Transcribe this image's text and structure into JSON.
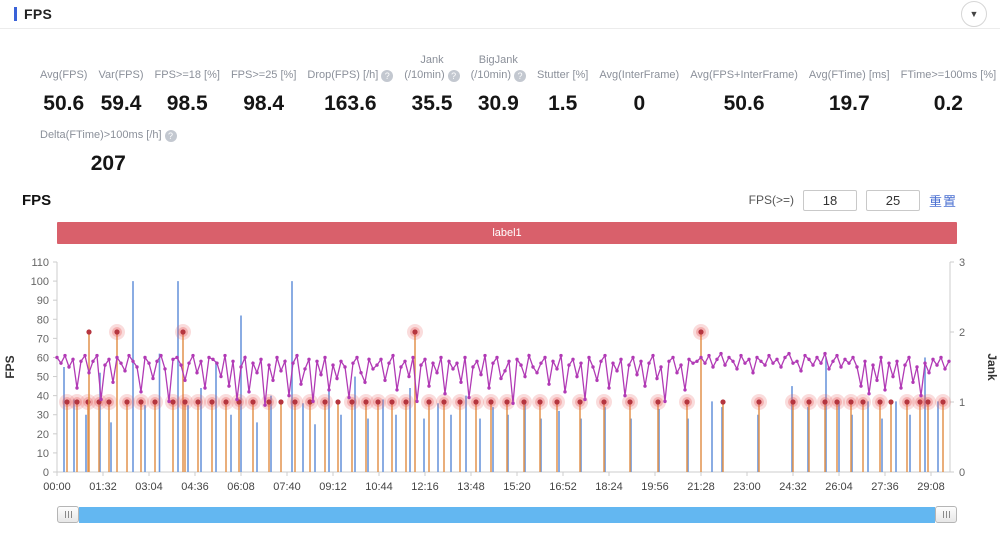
{
  "header": {
    "title": "FPS",
    "collapse_icon": "▼"
  },
  "stats": {
    "row1": [
      {
        "top": "",
        "label": "Avg(FPS)",
        "help": "",
        "value": "50.6"
      },
      {
        "top": "",
        "label": "Var(FPS)",
        "help": "",
        "value": "59.4"
      },
      {
        "top": "",
        "label": "FPS>=18 [%]",
        "help": "",
        "value": "98.5"
      },
      {
        "top": "",
        "label": "FPS>=25 [%]",
        "help": "",
        "value": "98.4"
      },
      {
        "top": "",
        "label": "Drop(FPS) [/h]",
        "help": "?",
        "value": "163.6"
      },
      {
        "top": "Jank",
        "label": "(/10min)",
        "help": "?",
        "value": "35.5"
      },
      {
        "top": "BigJank",
        "label": "(/10min)",
        "help": "?",
        "value": "30.9"
      },
      {
        "top": "",
        "label": "Stutter [%]",
        "help": "",
        "value": "1.5"
      },
      {
        "top": "",
        "label": "Avg(InterFrame)",
        "help": "",
        "value": "0"
      },
      {
        "top": "",
        "label": "Avg(FPS+InterFrame)",
        "help": "",
        "value": "50.6"
      },
      {
        "top": "",
        "label": "Avg(FTime) [ms]",
        "help": "",
        "value": "19.7"
      },
      {
        "top": "",
        "label": "FTime>=100ms [%]",
        "help": "",
        "value": "0.2"
      }
    ],
    "row2": [
      {
        "top": "",
        "label": "Delta(FTime)>100ms [/h]",
        "help": "?",
        "value": "207"
      }
    ]
  },
  "chart": {
    "section_title": "FPS",
    "controls": {
      "label": "FPS(>=)",
      "min_value": "18",
      "max_value": "25",
      "reset_label": "重置"
    },
    "banner": {
      "text": "label1",
      "color": "#d9606b"
    }
  },
  "chart_data": {
    "type": "line",
    "title": "FPS",
    "x_ticks": [
      "00:00",
      "01:32",
      "03:04",
      "04:36",
      "06:08",
      "07:40",
      "09:12",
      "10:44",
      "12:16",
      "13:48",
      "15:20",
      "16:52",
      "18:24",
      "19:56",
      "21:28",
      "23:00",
      "24:32",
      "26:04",
      "27:36",
      "29:08"
    ],
    "tick_interval_sec": 92,
    "time_max_sec": 1786,
    "left_axis": {
      "label": "FPS",
      "min": 0,
      "max": 110,
      "step": 10
    },
    "right_axis": {
      "label": "Jank",
      "min": 0,
      "max": 3,
      "step": 1
    },
    "legend": "none",
    "grid": "off",
    "colors": {
      "fps": "#b13ab5",
      "jank_stem": "#e2924d",
      "jank_dot": "#b5353f",
      "bigjank_halo": "#e86060",
      "drop_spike": "#6d98dc",
      "axis": "#cccccc",
      "tick_text": "#666666",
      "xtick_text": "#444444"
    },
    "fps_series": {
      "dt_sec": 8,
      "values": [
        60,
        57,
        61,
        55,
        59,
        44,
        58,
        61,
        52,
        58,
        61,
        38,
        56,
        59,
        47,
        60,
        57,
        53,
        61,
        58,
        55,
        42,
        60,
        57,
        49,
        58,
        61,
        54,
        37,
        59,
        60,
        56,
        48,
        57,
        61,
        52,
        58,
        44,
        60,
        59,
        57,
        50,
        61,
        45,
        58,
        38,
        55,
        60,
        42,
        57,
        52,
        59,
        35,
        56,
        48,
        60,
        53,
        58,
        40,
        57,
        61,
        46,
        54,
        59,
        37,
        58,
        51,
        60,
        43,
        56,
        49,
        58,
        55,
        39,
        57,
        60,
        52,
        47,
        59,
        54,
        56,
        59,
        48,
        57,
        61,
        43,
        55,
        58,
        50,
        60,
        37,
        56,
        59,
        45,
        57,
        52,
        60,
        41,
        58,
        54,
        57,
        47,
        60,
        39,
        55,
        58,
        51,
        61,
        44,
        57,
        60,
        49,
        53,
        58,
        36,
        59,
        56,
        50,
        61,
        55,
        52,
        57,
        60,
        46,
        58,
        54,
        61,
        42,
        56,
        59,
        50,
        57,
        38,
        60,
        55,
        48,
        58,
        61,
        44,
        57,
        53,
        59,
        40,
        56,
        60,
        51,
        58,
        45,
        57,
        61,
        49,
        55,
        37,
        58,
        60,
        52,
        56,
        43,
        59,
        57,
        58,
        60,
        57,
        61,
        55,
        59,
        62,
        56,
        60,
        58,
        54,
        61,
        57,
        59,
        52,
        60,
        58,
        56,
        61,
        57,
        59,
        55,
        60,
        62,
        57,
        58,
        53,
        61,
        59,
        56,
        60,
        57,
        62,
        54,
        58,
        61,
        55,
        59,
        57,
        60,
        55,
        45,
        58,
        41,
        56,
        48,
        60,
        43,
        57,
        50,
        58,
        44,
        56,
        60,
        47,
        55,
        40,
        57,
        52,
        59,
        56,
        60,
        54,
        58,
        61,
        57,
        59,
        60,
        58,
        61
      ]
    },
    "jank_events": [
      [
        20,
        1,
        1
      ],
      [
        40,
        1,
        1
      ],
      [
        62,
        1,
        1
      ],
      [
        64,
        2,
        0
      ],
      [
        84,
        1,
        1
      ],
      [
        104,
        1,
        1
      ],
      [
        120,
        2,
        1
      ],
      [
        140,
        1,
        1
      ],
      [
        168,
        1,
        1
      ],
      [
        196,
        1,
        1
      ],
      [
        232,
        1,
        1
      ],
      [
        252,
        2,
        1
      ],
      [
        256,
        1,
        1
      ],
      [
        282,
        1,
        1
      ],
      [
        310,
        1,
        1
      ],
      [
        338,
        1,
        1
      ],
      [
        364,
        1,
        1
      ],
      [
        392,
        1,
        1
      ],
      [
        424,
        1,
        1
      ],
      [
        448,
        1,
        0
      ],
      [
        476,
        1,
        1
      ],
      [
        506,
        1,
        1
      ],
      [
        536,
        1,
        1
      ],
      [
        562,
        1,
        0
      ],
      [
        590,
        1,
        1
      ],
      [
        618,
        1,
        1
      ],
      [
        642,
        1,
        1
      ],
      [
        670,
        1,
        1
      ],
      [
        698,
        1,
        1
      ],
      [
        716,
        2,
        1
      ],
      [
        744,
        1,
        1
      ],
      [
        774,
        1,
        1
      ],
      [
        806,
        1,
        1
      ],
      [
        838,
        1,
        1
      ],
      [
        868,
        1,
        1
      ],
      [
        900,
        1,
        1
      ],
      [
        934,
        1,
        1
      ],
      [
        966,
        1,
        1
      ],
      [
        1000,
        1,
        1
      ],
      [
        1046,
        1,
        1
      ],
      [
        1094,
        1,
        1
      ],
      [
        1146,
        1,
        1
      ],
      [
        1202,
        1,
        1
      ],
      [
        1260,
        1,
        1
      ],
      [
        1288,
        2,
        1
      ],
      [
        1332,
        1,
        0
      ],
      [
        1404,
        1,
        1
      ],
      [
        1472,
        1,
        1
      ],
      [
        1504,
        1,
        1
      ],
      [
        1536,
        1,
        1
      ],
      [
        1560,
        1,
        1
      ],
      [
        1588,
        1,
        1
      ],
      [
        1612,
        1,
        1
      ],
      [
        1646,
        1,
        1
      ],
      [
        1668,
        1,
        0
      ],
      [
        1700,
        1,
        1
      ],
      [
        1726,
        1,
        1
      ],
      [
        1742,
        1,
        1
      ],
      [
        1772,
        1,
        1
      ]
    ],
    "drop_events": [
      [
        14,
        55
      ],
      [
        34,
        38
      ],
      [
        58,
        30
      ],
      [
        86,
        52
      ],
      [
        108,
        26
      ],
      [
        152,
        100
      ],
      [
        176,
        35
      ],
      [
        205,
        62
      ],
      [
        242,
        100
      ],
      [
        262,
        35
      ],
      [
        288,
        44
      ],
      [
        318,
        58
      ],
      [
        348,
        30
      ],
      [
        368,
        82
      ],
      [
        400,
        26
      ],
      [
        428,
        40
      ],
      [
        470,
        100
      ],
      [
        492,
        36
      ],
      [
        516,
        25
      ],
      [
        544,
        45
      ],
      [
        568,
        30
      ],
      [
        596,
        50
      ],
      [
        622,
        28
      ],
      [
        652,
        38
      ],
      [
        678,
        30
      ],
      [
        706,
        44
      ],
      [
        734,
        28
      ],
      [
        762,
        36
      ],
      [
        788,
        30
      ],
      [
        818,
        40
      ],
      [
        846,
        28
      ],
      [
        872,
        34
      ],
      [
        902,
        30
      ],
      [
        936,
        36
      ],
      [
        968,
        28
      ],
      [
        1004,
        32
      ],
      [
        1048,
        28
      ],
      [
        1096,
        34
      ],
      [
        1148,
        28
      ],
      [
        1204,
        33
      ],
      [
        1262,
        28
      ],
      [
        1310,
        37
      ],
      [
        1330,
        34
      ],
      [
        1402,
        30
      ],
      [
        1470,
        45
      ],
      [
        1502,
        34
      ],
      [
        1538,
        60
      ],
      [
        1564,
        37
      ],
      [
        1590,
        30
      ],
      [
        1622,
        37
      ],
      [
        1650,
        28
      ],
      [
        1678,
        37
      ],
      [
        1706,
        30
      ],
      [
        1736,
        60
      ],
      [
        1762,
        37
      ]
    ]
  },
  "scrollbar": {
    "left_grip": "drag-handle",
    "right_grip": "drag-handle"
  }
}
